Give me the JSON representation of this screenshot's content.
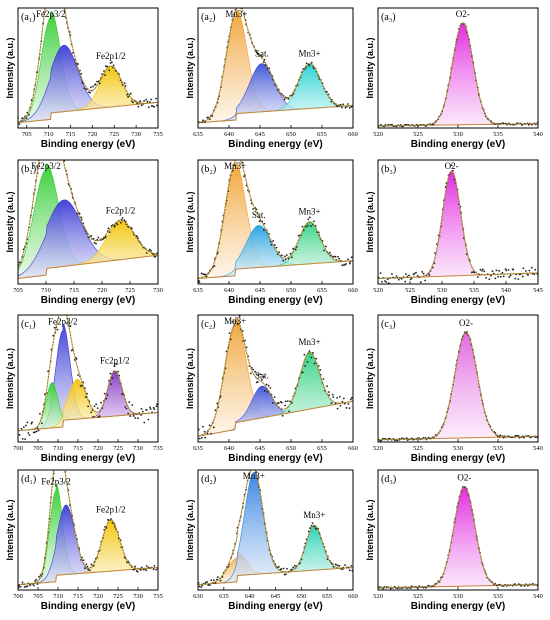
{
  "figure": {
    "ylabel": "Intensity (a.u.)",
    "xlabel": "Binding energy",
    "xunit": "(eV)"
  },
  "chart_data": [
    {
      "id": "a1",
      "type": "area",
      "label": "(a₁)",
      "x_ticks": [
        705,
        710,
        715,
        720,
        725,
        730,
        735
      ],
      "xlim": [
        703,
        735
      ],
      "peaks": [
        {
          "name": "Fe2p3/2",
          "label": true,
          "center": 710.5,
          "amp": 0.95,
          "width": 2.2,
          "color": "#2ecc2e"
        },
        {
          "name": "",
          "label": false,
          "center": 713.5,
          "amp": 0.62,
          "width": 3.2,
          "color": "#3a3ad6"
        },
        {
          "name": "Fe2p1/2",
          "label": true,
          "center": 724.2,
          "amp": 0.38,
          "width": 2.5,
          "color": "#f2c200"
        }
      ],
      "baseline": [
        0.05,
        0.18
      ],
      "noise": 0.04
    },
    {
      "id": "a2",
      "type": "area",
      "label": "(a₂)",
      "x_ticks": [
        635,
        640,
        645,
        650,
        655,
        660
      ],
      "xlim": [
        635,
        660
      ],
      "peaks": [
        {
          "name": "Mn3+",
          "label": true,
          "center": 641.2,
          "amp": 0.97,
          "width": 1.7,
          "color": "#f0a030"
        },
        {
          "name": "Sat.",
          "label": true,
          "center": 645.3,
          "amp": 0.45,
          "width": 2.0,
          "color": "#3a50d6"
        },
        {
          "name": "Mn3+",
          "label": true,
          "center": 653.0,
          "amp": 0.42,
          "width": 1.8,
          "color": "#20d0d0"
        }
      ],
      "baseline": [
        0.05,
        0.15
      ],
      "noise": 0.02
    },
    {
      "id": "a3",
      "type": "area",
      "label": "(a₃)",
      "x_ticks": [
        520,
        525,
        530,
        535,
        540
      ],
      "xlim": [
        520,
        540
      ],
      "peaks": [
        {
          "name": "O2-",
          "label": true,
          "center": 530.6,
          "amp": 0.95,
          "width": 1.3,
          "color": "#e020e0"
        }
      ],
      "baseline": [
        0.02,
        0.04
      ],
      "noise": 0.01
    },
    {
      "id": "b1",
      "type": "area",
      "label": "(b₁)",
      "x_ticks": [
        705,
        710,
        715,
        720,
        725,
        730
      ],
      "xlim": [
        705,
        730
      ],
      "peaks": [
        {
          "name": "Fe2p3/2",
          "label": true,
          "center": 710.0,
          "amp": 0.95,
          "width": 2.2,
          "color": "#2ecc2e"
        },
        {
          "name": "",
          "label": false,
          "center": 713.2,
          "amp": 0.6,
          "width": 3.2,
          "color": "#3a3ad6"
        },
        {
          "name": "Fc2p1/2",
          "label": true,
          "center": 723.3,
          "amp": 0.35,
          "width": 2.5,
          "color": "#f2c200"
        }
      ],
      "baseline": [
        0.05,
        0.2
      ],
      "noise": 0.03
    },
    {
      "id": "b2",
      "type": "area",
      "label": "(b₂)",
      "x_ticks": [
        635,
        640,
        645,
        650,
        655,
        660
      ],
      "xlim": [
        635,
        660
      ],
      "peaks": [
        {
          "name": "Mn3+",
          "label": true,
          "center": 641.0,
          "amp": 0.97,
          "width": 1.7,
          "color": "#f0a030"
        },
        {
          "name": "Sat.",
          "label": true,
          "center": 644.8,
          "amp": 0.38,
          "width": 2.0,
          "color": "#20a0e0"
        },
        {
          "name": "Mn3+",
          "label": true,
          "center": 653.0,
          "amp": 0.38,
          "width": 1.7,
          "color": "#30d080"
        }
      ],
      "baseline": [
        0.05,
        0.15
      ],
      "noise": 0.04
    },
    {
      "id": "b3",
      "type": "area",
      "label": "(b₃)",
      "x_ticks": [
        520,
        525,
        530,
        535,
        540,
        545
      ],
      "xlim": [
        520,
        545
      ],
      "peaks": [
        {
          "name": "O2-",
          "label": true,
          "center": 531.5,
          "amp": 0.95,
          "width": 1.4,
          "color": "#e020e0"
        }
      ],
      "baseline": [
        0.05,
        0.1
      ],
      "noise": 0.05
    },
    {
      "id": "c1",
      "type": "area",
      "label": "(c₁)",
      "x_ticks": [
        700,
        705,
        710,
        715,
        720,
        725,
        730,
        735
      ],
      "xlim": [
        700,
        735
      ],
      "peaks": [
        {
          "name": "Fe2p3/2",
          "label": true,
          "center": 711.2,
          "amp": 0.85,
          "width": 1.8,
          "color": "#3a3ad6"
        },
        {
          "name": "",
          "label": false,
          "center": 708.5,
          "amp": 0.4,
          "width": 1.5,
          "color": "#2ecc2e"
        },
        {
          "name": "",
          "label": false,
          "center": 714.8,
          "amp": 0.35,
          "width": 2.2,
          "color": "#f2c200"
        },
        {
          "name": "Fc2p1/2",
          "label": true,
          "center": 724.2,
          "amp": 0.4,
          "width": 1.8,
          "color": "#8030c0"
        }
      ],
      "baseline": [
        0.1,
        0.2
      ],
      "noise": 0.08
    },
    {
      "id": "c2",
      "type": "area",
      "label": "(c₂)",
      "x_ticks": [
        635,
        640,
        645,
        650,
        655,
        660
      ],
      "xlim": [
        635,
        660
      ],
      "peaks": [
        {
          "name": "Mn3+",
          "label": true,
          "center": 641.0,
          "amp": 0.92,
          "width": 1.7,
          "color": "#f0a030"
        },
        {
          "name": "Sat.",
          "label": true,
          "center": 645.3,
          "amp": 0.28,
          "width": 1.6,
          "color": "#3a50d6"
        },
        {
          "name": "Mn3+",
          "label": true,
          "center": 653.0,
          "amp": 0.5,
          "width": 1.6,
          "color": "#30d080"
        }
      ],
      "baseline": [
        0.05,
        0.3
      ],
      "noise": 0.07
    },
    {
      "id": "c3",
      "type": "area",
      "label": "(c₃)",
      "x_ticks": [
        520,
        525,
        530,
        535,
        540
      ],
      "xlim": [
        520,
        540
      ],
      "peaks": [
        {
          "name": "O2-",
          "label": true,
          "center": 531.0,
          "amp": 0.93,
          "width": 1.4,
          "color": "#e060e0"
        }
      ],
      "baseline": [
        0.02,
        0.05
      ],
      "noise": 0.01
    },
    {
      "id": "d1",
      "type": "area",
      "label": "(d₁)",
      "x_ticks": [
        700,
        705,
        710,
        715,
        720,
        725,
        730,
        735
      ],
      "xlim": [
        700,
        735
      ],
      "peaks": [
        {
          "name": "Fe2p3/2",
          "label": true,
          "center": 709.5,
          "amp": 0.85,
          "width": 1.6,
          "color": "#2ecc2e"
        },
        {
          "name": "",
          "label": false,
          "center": 712.0,
          "amp": 0.65,
          "width": 2.2,
          "color": "#3a3ad6"
        },
        {
          "name": "Fe2p1/2",
          "label": true,
          "center": 723.2,
          "amp": 0.48,
          "width": 2.2,
          "color": "#f2c200"
        }
      ],
      "baseline": [
        0.05,
        0.15
      ],
      "noise": 0.03
    },
    {
      "id": "d2",
      "type": "area",
      "label": "(d₂)",
      "x_ticks": [
        630,
        635,
        640,
        645,
        650,
        655,
        660
      ],
      "xlim": [
        630,
        660
      ],
      "peaks": [
        {
          "name": "",
          "label": false,
          "center": 637.5,
          "amp": 0.22,
          "width": 1.8,
          "color": "#f0a030"
        },
        {
          "name": "Mn3+",
          "label": true,
          "center": 640.8,
          "amp": 0.95,
          "width": 1.8,
          "color": "#3080e0"
        },
        {
          "name": "Mn3+",
          "label": true,
          "center": 652.5,
          "amp": 0.42,
          "width": 1.6,
          "color": "#20d0b0"
        }
      ],
      "baseline": [
        0.05,
        0.15
      ],
      "noise": 0.03
    },
    {
      "id": "d3",
      "type": "area",
      "label": "(d₃)",
      "x_ticks": [
        520,
        525,
        530,
        535,
        540
      ],
      "xlim": [
        520,
        540
      ],
      "peaks": [
        {
          "name": "O2-",
          "label": true,
          "center": 530.8,
          "amp": 0.93,
          "width": 1.3,
          "color": "#e020e0"
        }
      ],
      "baseline": [
        0.02,
        0.05
      ],
      "noise": 0.01
    }
  ]
}
